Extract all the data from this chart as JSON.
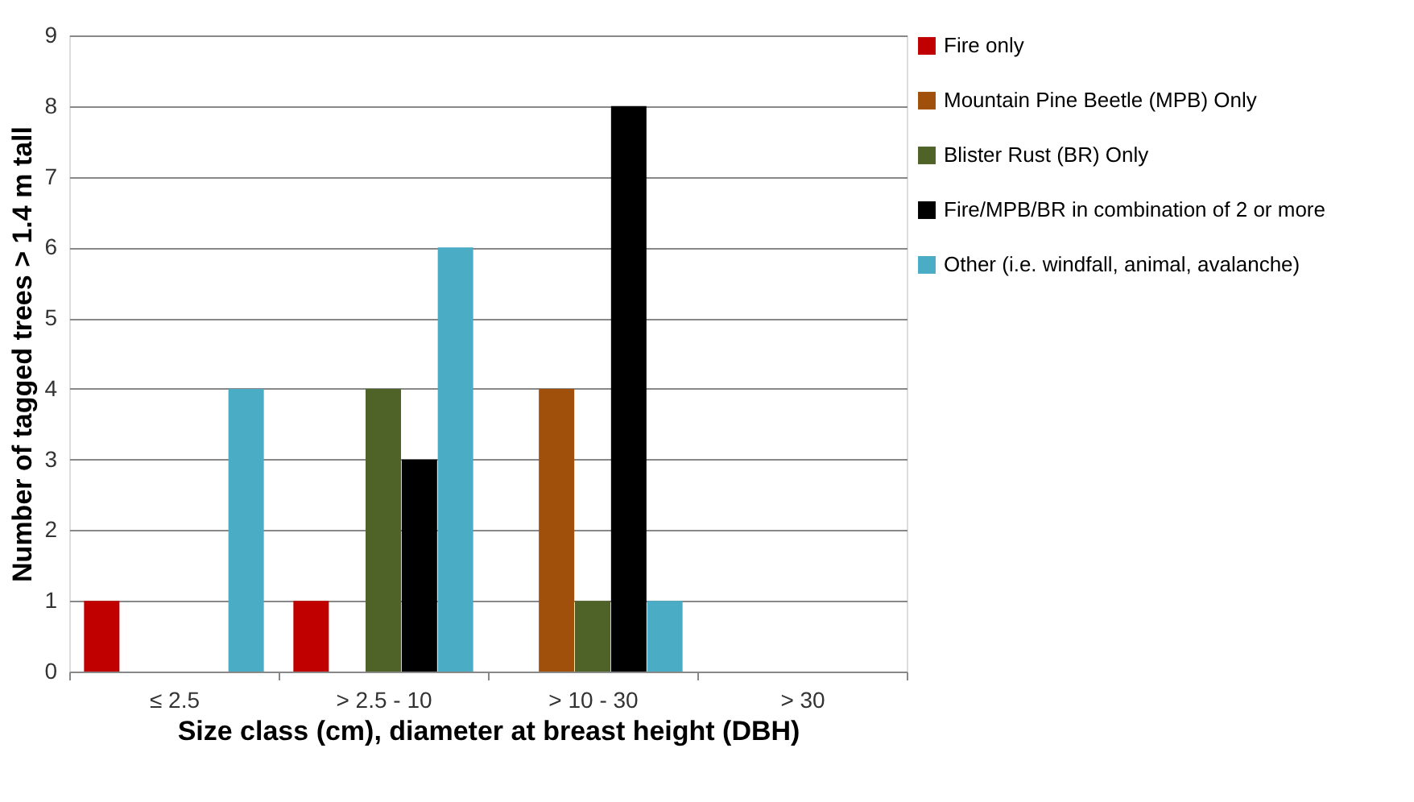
{
  "chart_data": {
    "type": "bar",
    "xlabel": "Size class (cm), diameter at breast height (DBH)",
    "ylabel": "Number of tagged trees > 1.4 m tall",
    "categories": [
      "≤ 2.5",
      "> 2.5 - 10",
      "> 10 - 30",
      "> 30"
    ],
    "series": [
      {
        "name": "Fire only",
        "color": "#c00000",
        "values": [
          1,
          1,
          0,
          0
        ]
      },
      {
        "name": "Mountain Pine Beetle (MPB) Only",
        "color": "#a0500a",
        "values": [
          0,
          0,
          4,
          0
        ]
      },
      {
        "name": "Blister Rust (BR) Only",
        "color": "#4f6228",
        "values": [
          0,
          4,
          1,
          0
        ]
      },
      {
        "name": "Fire/MPB/BR in combination of 2 or more",
        "color": "#000000",
        "values": [
          0,
          3,
          8,
          0
        ]
      },
      {
        "name": "Other (i.e. windfall, animal, avalanche)",
        "color": "#4bacc6",
        "values": [
          4,
          6,
          1,
          0
        ]
      }
    ],
    "ylim": [
      0,
      9
    ],
    "yticks": [
      0,
      1,
      2,
      3,
      4,
      5,
      6,
      7,
      8,
      9
    ],
    "grid": "y",
    "legend": "right"
  }
}
